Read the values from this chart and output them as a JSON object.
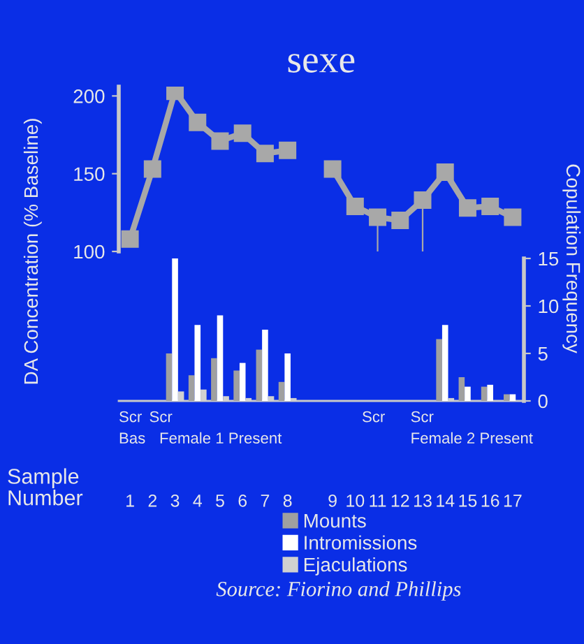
{
  "chart_data": [
    {
      "type": "line",
      "title": "sexe",
      "ylabel": "DA Concentration (% Baseline)",
      "categories": [
        "1",
        "2",
        "3",
        "4",
        "5",
        "6",
        "7",
        "8",
        null,
        "9",
        "10",
        "11",
        "12",
        "13",
        "14",
        "15",
        "16",
        "17"
      ],
      "series": [
        {
          "color": "#a8a8a8",
          "values": [
            108,
            153,
            203,
            183,
            171,
            176,
            163,
            165,
            null,
            153,
            129,
            122,
            120,
            133,
            151,
            128,
            129,
            122
          ]
        }
      ],
      "ylim": [
        100,
        206
      ],
      "yticks": [
        100,
        150,
        200
      ],
      "marker": "square",
      "line_style": "solid",
      "tick_labels": "y",
      "ref_lines": [
        {
          "axis": "x",
          "value": "11",
          "color": "#a8a8a8"
        },
        {
          "axis": "x",
          "value": "13",
          "color": "#a8a8a8"
        }
      ]
    },
    {
      "type": "bar",
      "ylabel": "Copulation Frequency",
      "xlabel": "Sample Number",
      "categories": [
        "1",
        "2",
        "3",
        "4",
        "5",
        "6",
        "7",
        "8",
        null,
        "9",
        "10",
        "11",
        "12",
        "13",
        "14",
        "15",
        "16",
        "17"
      ],
      "series": [
        {
          "name": "Mounts",
          "color": "#a0a0a0",
          "values": [
            0,
            0,
            5,
            2.7,
            4.5,
            3.2,
            5.4,
            2,
            null,
            0,
            0,
            0,
            0,
            0,
            6.5,
            2.5,
            1.5,
            0.7
          ]
        },
        {
          "name": "Intromissions",
          "color": "#ffffff",
          "values": [
            0,
            0,
            15,
            8,
            9,
            4,
            7.5,
            5,
            null,
            0,
            0,
            0,
            0,
            0,
            8,
            1.5,
            1.7,
            0.7
          ]
        },
        {
          "name": "Ejaculations",
          "color": "#d0d0d0",
          "values": [
            0,
            0,
            1,
            1.2,
            0.5,
            0.3,
            0.5,
            0.3,
            null,
            0,
            0,
            0,
            0,
            0,
            0.3,
            0,
            0,
            0
          ]
        }
      ],
      "ylim": [
        0,
        15
      ],
      "yticks": [
        0,
        5,
        10,
        15
      ],
      "grid": false,
      "legend": "bottom",
      "annotations": [
        "Scr",
        "Scr",
        "Bas",
        "Female 1 Present",
        "Scr",
        "Scr",
        "Female 2 Present",
        "Source: Fiorino and Phillips"
      ]
    }
  ]
}
